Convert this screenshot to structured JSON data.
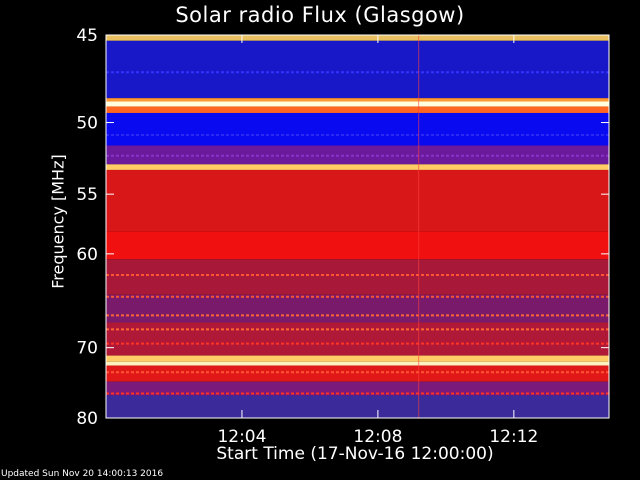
{
  "chart_data": {
    "type": "heatmap",
    "title": "Solar radio Flux (Glasgow)",
    "xlabel": "Start Time (17-Nov-16 12:00:00)",
    "ylabel": "Frequency [MHz]",
    "x_ticks": [
      {
        "minute": 4,
        "label": "12:04"
      },
      {
        "minute": 8,
        "label": "12:08"
      },
      {
        "minute": 12,
        "label": "12:12"
      }
    ],
    "xlim_minutes": [
      0,
      14.8
    ],
    "y_ticks": [
      45,
      50,
      55,
      60,
      70,
      80
    ],
    "ylim_mhz": [
      45,
      80
    ],
    "y_scale": "reciprocal",
    "bands": [
      {
        "from": 45,
        "to": 45.3,
        "color": "#e8c060"
      },
      {
        "from": 45.3,
        "to": 48.5,
        "color": "#1818c8"
      },
      {
        "from": 48.5,
        "to": 48.7,
        "color": "#ff9933"
      },
      {
        "from": 48.7,
        "to": 49.0,
        "color": "#ffffe0"
      },
      {
        "from": 49.0,
        "to": 49.4,
        "color": "#ff6622"
      },
      {
        "from": 49.4,
        "to": 51.5,
        "color": "#0a0af0"
      },
      {
        "from": 51.5,
        "to": 52.8,
        "color": "#6a1a9a"
      },
      {
        "from": 52.8,
        "to": 53.2,
        "color": "#ffcc66"
      },
      {
        "from": 53.2,
        "to": 58.0,
        "color": "#d81818"
      },
      {
        "from": 58.0,
        "to": 60.5,
        "color": "#f01010"
      },
      {
        "from": 60.5,
        "to": 64.0,
        "color": "#a81838"
      },
      {
        "from": 64.0,
        "to": 67.0,
        "color": "#7a1a6a"
      },
      {
        "from": 67.0,
        "to": 71.0,
        "color": "#b01838"
      },
      {
        "from": 71.0,
        "to": 71.8,
        "color": "#ffcc66"
      },
      {
        "from": 71.8,
        "to": 72.3,
        "color": "#fff0c0"
      },
      {
        "from": 72.3,
        "to": 74.5,
        "color": "#e01818"
      },
      {
        "from": 74.5,
        "to": 76.5,
        "color": "#7a1a7a"
      },
      {
        "from": 76.5,
        "to": 80.0,
        "color": "#3a2a9a"
      }
    ],
    "lines": [
      {
        "mhz": 62.0,
        "color": "#ff5533"
      },
      {
        "mhz": 64.2,
        "color": "#ff5533"
      },
      {
        "mhz": 66.2,
        "color": "#ff6633"
      },
      {
        "mhz": 67.8,
        "color": "#ff6633"
      },
      {
        "mhz": 69.5,
        "color": "#ff3322"
      },
      {
        "mhz": 73.2,
        "color": "#ff5533"
      },
      {
        "mhz": 76.2,
        "color": "#ff3322"
      },
      {
        "mhz": 47.0,
        "color": "#3333ff"
      },
      {
        "mhz": 50.8,
        "color": "#2a2af0"
      },
      {
        "mhz": 52.2,
        "color": "#8833cc"
      }
    ]
  },
  "footer": "Updated Sun Nov 20 14:00:13 2016"
}
